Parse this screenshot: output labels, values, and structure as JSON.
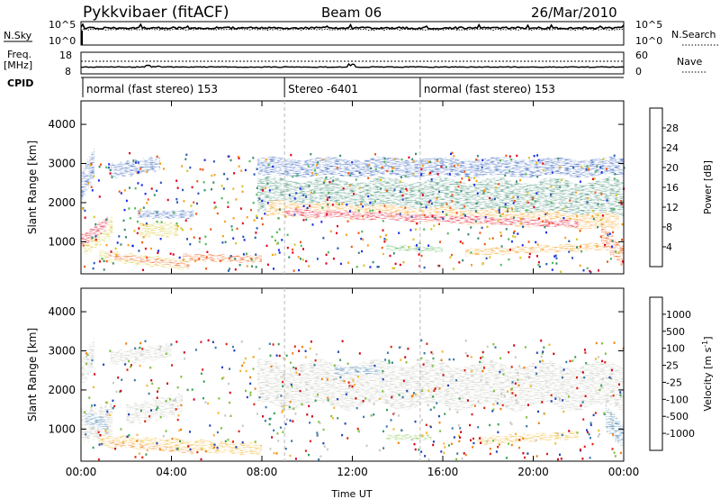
{
  "header": {
    "station": "Pykkvibaer (fitACF)",
    "beam": "Beam 06",
    "date": "26/Mar/2010"
  },
  "strip_labels": {
    "nsky": "N.Sky",
    "nsearch": "N.Search",
    "freq_line1": "Freq.",
    "freq_line2": "[MHz]",
    "nave": "Nave",
    "cpid": "CPID"
  },
  "strip_ticks": {
    "noise_left": [
      "10^5",
      "10^0"
    ],
    "noise_right": [
      "10^5",
      "10^0"
    ],
    "freq_left": [
      "18",
      "8"
    ],
    "freq_right": [
      "60",
      "0"
    ]
  },
  "cpid_segments": [
    {
      "label": "normal (fast stereo) 153",
      "start_hour": 0
    },
    {
      "label": "Stereo -6401",
      "start_hour": 9
    },
    {
      "label": "normal (fast stereo) 153",
      "start_hour": 15
    }
  ],
  "chart_data": [
    {
      "type": "heatmap",
      "variable": "Power",
      "ylabel": "Slant Range [km]",
      "xlabel": "Time UT",
      "ylim": [
        180,
        4600
      ],
      "xlim_hours": [
        0,
        24
      ],
      "x_ticks": [
        "00:00",
        "04:00",
        "08:00",
        "12:00",
        "16:00",
        "20:00",
        "00:00"
      ],
      "y_ticks": [
        1000,
        2000,
        3000,
        4000
      ],
      "colorbar": {
        "label": "Power [dB]",
        "ticks": [
          4,
          8,
          12,
          16,
          20,
          24,
          28
        ],
        "colors": [
          "#1a2cf0",
          "#2858b8",
          "#3b8a70",
          "#53b85a",
          "#d6c628",
          "#f7a020",
          "#ee5a12",
          "#e0001c"
        ]
      }
    },
    {
      "type": "heatmap",
      "variable": "Velocity",
      "ylabel": "Slant Range [km]",
      "xlabel": "Time UT",
      "ylim": [
        180,
        4600
      ],
      "xlim_hours": [
        0,
        24
      ],
      "x_ticks": [
        "00:00",
        "04:00",
        "08:00",
        "12:00",
        "16:00",
        "20:00",
        "00:00"
      ],
      "y_ticks": [
        1000,
        2000,
        3000,
        4000
      ],
      "colorbar": {
        "label": "Velocity [m s",
        "label_superscript": "-1",
        "ticks": [
          1000,
          500,
          100,
          25,
          -25,
          -100,
          -500,
          -1000
        ],
        "colors": [
          "#2040c0",
          "#3a78a8",
          "#3aa058",
          "#80c040",
          "#c8c8c0",
          "#f2b830",
          "#f08010",
          "#e02010",
          "#d00010"
        ]
      }
    }
  ]
}
